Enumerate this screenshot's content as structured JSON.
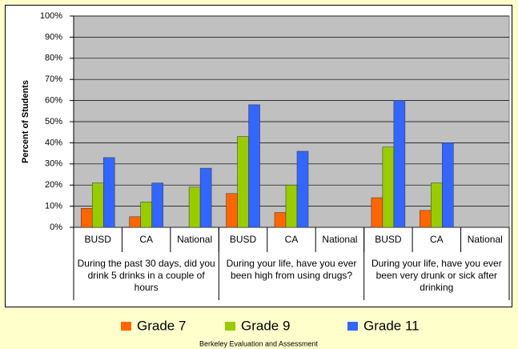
{
  "chart_data": {
    "type": "bar",
    "ylabel": "Percent of Students",
    "categories": [
      "BUSD",
      "CA",
      "National",
      "BUSD",
      "CA",
      "National",
      "BUSD",
      "CA",
      "National"
    ],
    "groups": [
      "During the past 30 days, did you drink 5 drinks in a couple of hours",
      "During your life, have you ever been high from using drugs?",
      "During your life, have you ever been very drunk or sick after drinking"
    ],
    "series": [
      {
        "name": "Grade 7",
        "color": "#ff6600",
        "values": [
          9,
          5,
          null,
          16,
          7,
          null,
          14,
          8,
          null
        ]
      },
      {
        "name": "Grade 9",
        "color": "#99cc00",
        "values": [
          21,
          12,
          19,
          43,
          20,
          null,
          38,
          21,
          null
        ]
      },
      {
        "name": "Grade 11",
        "color": "#3366ff",
        "values": [
          33,
          21,
          28,
          58,
          36,
          null,
          60,
          40,
          null
        ]
      }
    ],
    "ylim": [
      0,
      100
    ],
    "yticks": [
      {
        "value": 0,
        "label": "0%"
      },
      {
        "value": 10,
        "label": "10%"
      },
      {
        "value": 20,
        "label": "20%"
      },
      {
        "value": 30,
        "label": "30%"
      },
      {
        "value": 40,
        "label": "40%"
      },
      {
        "value": 50,
        "label": "50%"
      },
      {
        "value": 60,
        "label": "60%"
      },
      {
        "value": 70,
        "label": "70%"
      },
      {
        "value": 80,
        "label": "80%"
      },
      {
        "value": 90,
        "label": "90%"
      },
      {
        "value": 100,
        "label": "100%"
      }
    ],
    "grid": true,
    "plot_background": "#c0c0c0",
    "legend": "bottom",
    "footer": "Berkeley Evaluation and Assessment"
  }
}
